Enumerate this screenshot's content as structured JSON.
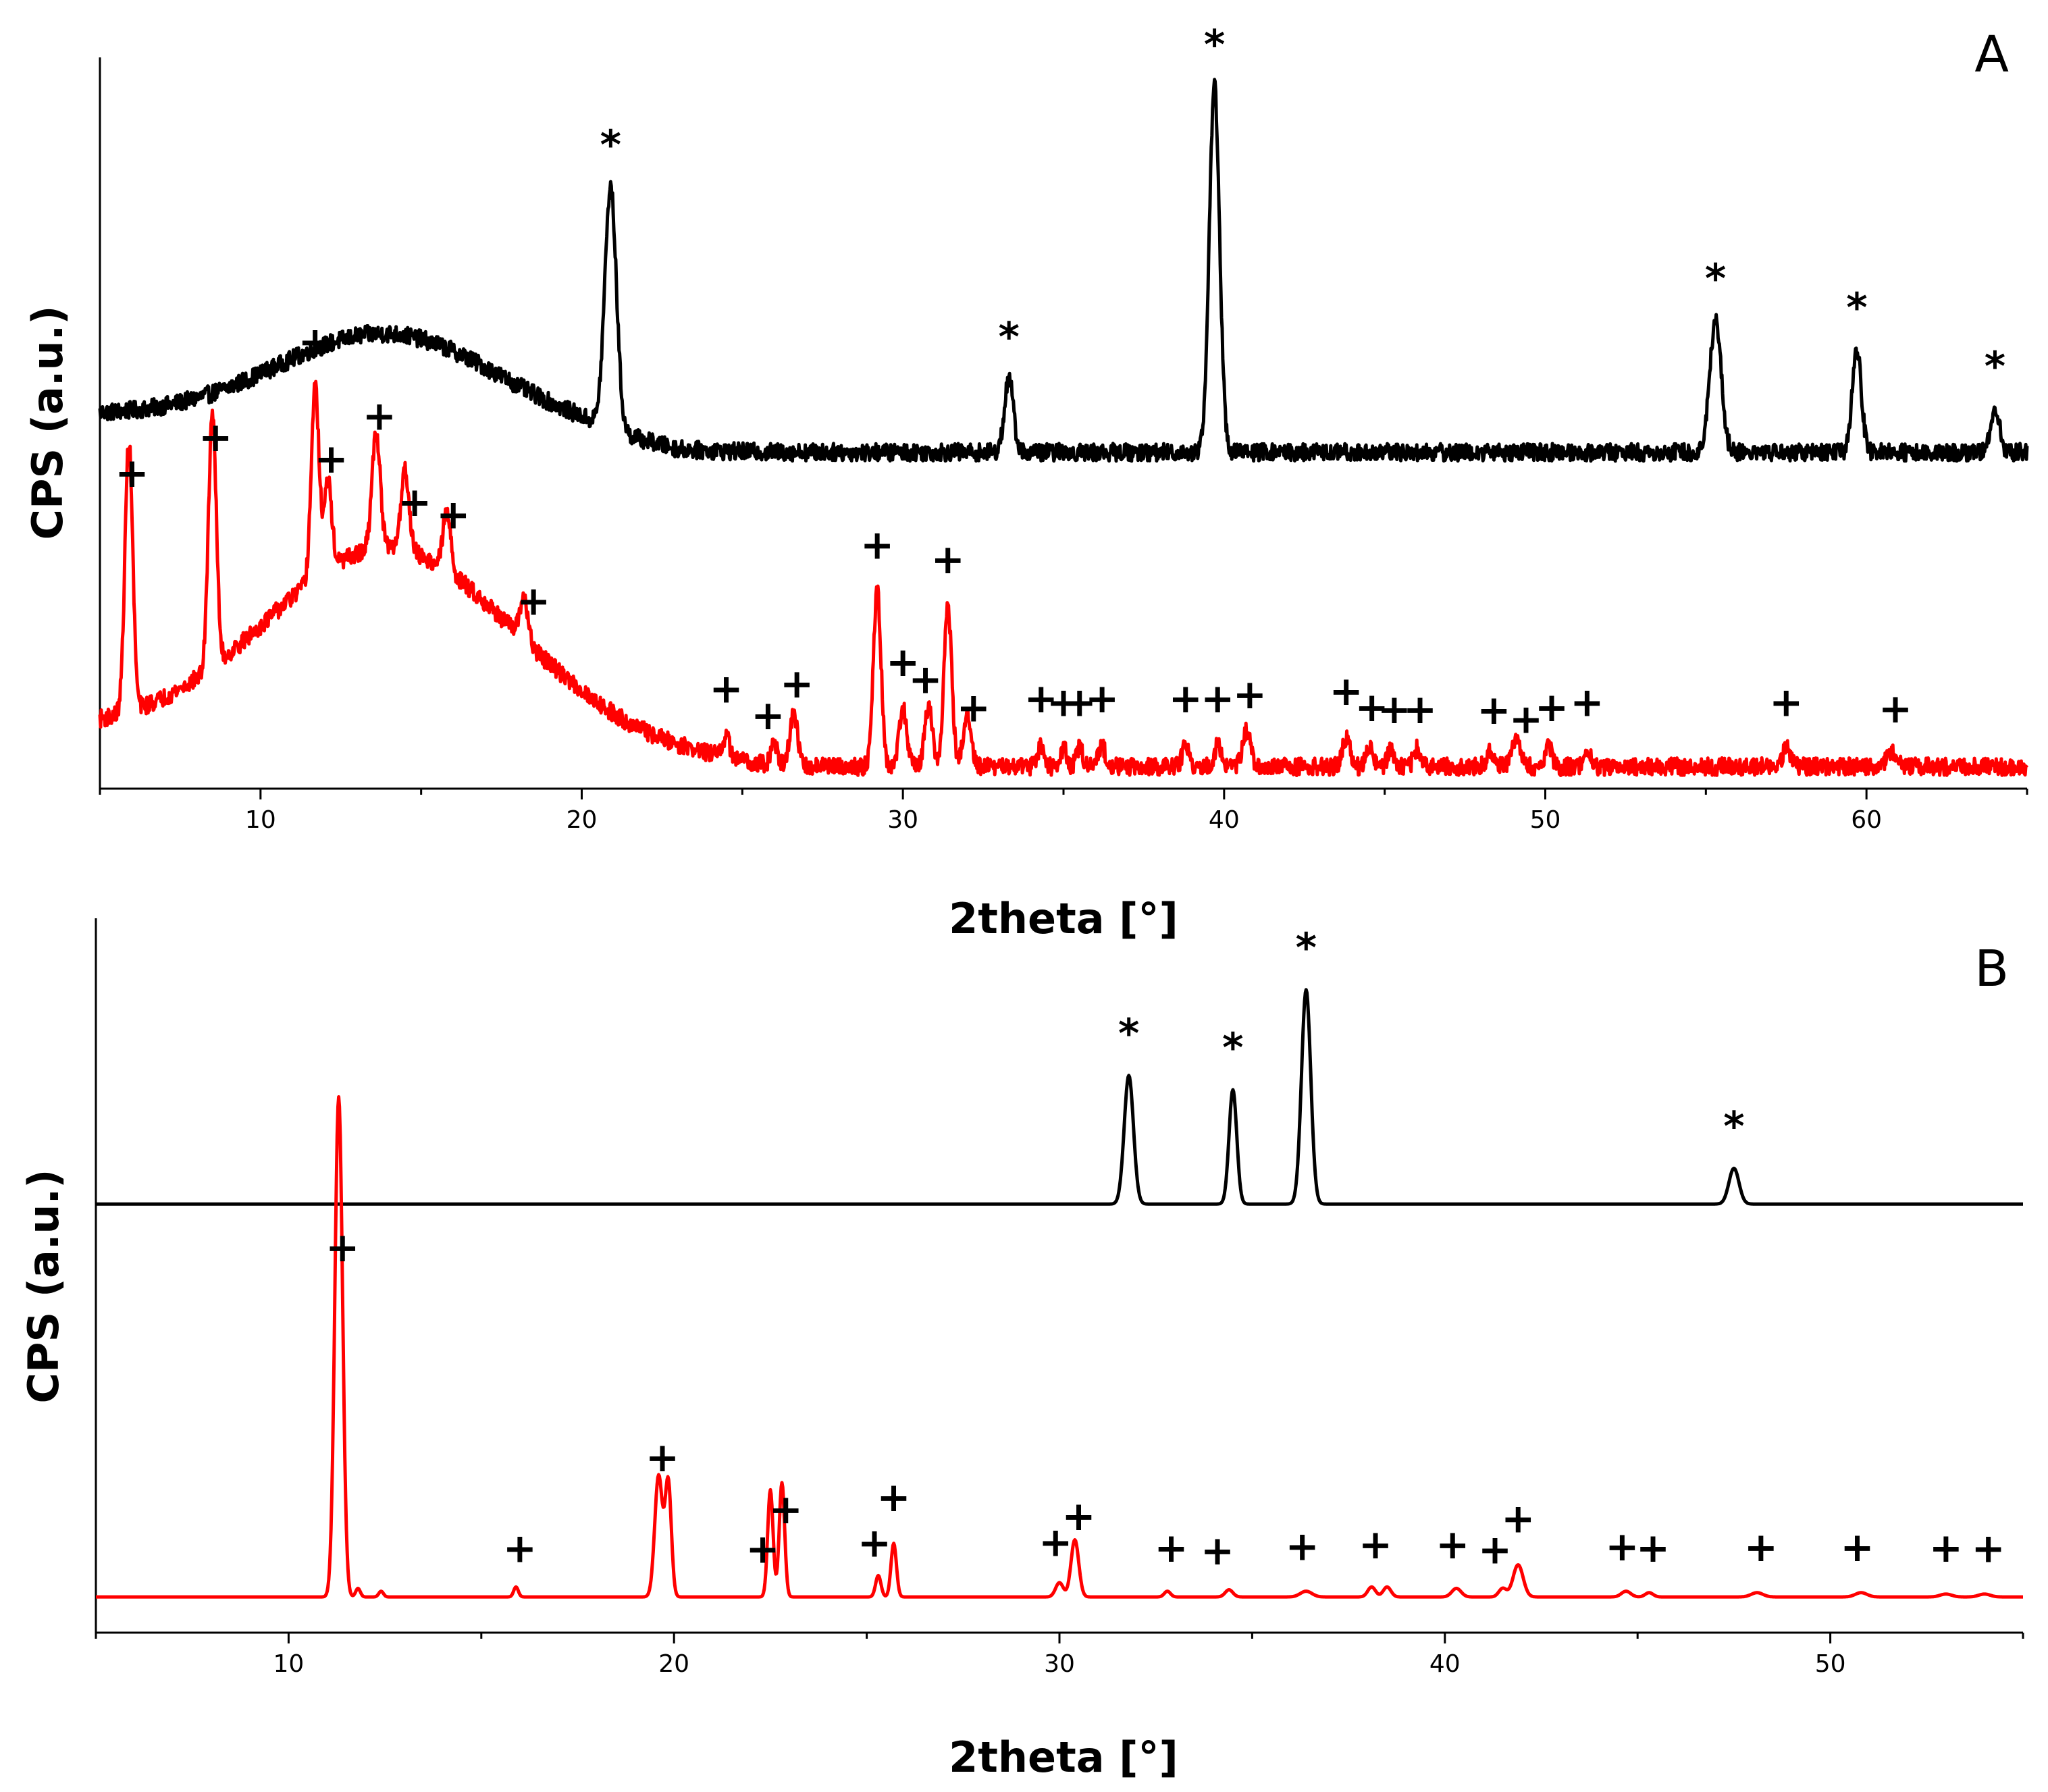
{
  "chart_data": [
    {
      "panel_label": "A",
      "type": "line",
      "xlabel": "2theta [°]",
      "ylabel": "CPS (a.u.)",
      "xlim": [
        5,
        65
      ],
      "ylim": [
        0,
        1
      ],
      "x_ticks": [
        10,
        20,
        30,
        40,
        50,
        60
      ],
      "y_ticks_labeled": false,
      "grid": false,
      "legend": "none",
      "series": [
        {
          "color": "#000000",
          "baseline": 0.46,
          "noise": 0.012,
          "humps": [
            [
              14,
              0.13,
              3.5
            ]
          ],
          "ramp": [
            [
              5,
              0.05
            ],
            [
              20,
              0.02
            ],
            [
              23,
              0.0
            ]
          ],
          "peaks": [
            [
              20.9,
              0.33,
              0.18
            ],
            [
              33.3,
              0.1,
              0.14
            ],
            [
              39.7,
              0.5,
              0.16
            ],
            [
              55.3,
              0.18,
              0.18
            ],
            [
              59.7,
              0.14,
              0.14
            ],
            [
              64.0,
              0.06,
              0.14
            ]
          ],
          "markers": {
            "symbol": "*",
            "x": [
              20.9,
              33.3,
              39.7,
              55.3,
              59.7,
              64.0
            ]
          }
        },
        {
          "color": "#ff0000",
          "baseline": 0.03,
          "noise": 0.012,
          "humps": [
            [
              14,
              0.26,
              3.8
            ]
          ],
          "ramp": [
            [
              5,
              0.05
            ],
            [
              20,
              0.03
            ],
            [
              26,
              0.0
            ]
          ],
          "peaks": [
            [
              5.9,
              0.37,
              0.12
            ],
            [
              8.5,
              0.35,
              0.12
            ],
            [
              11.7,
              0.26,
              0.12
            ],
            [
              12.1,
              0.12,
              0.12
            ],
            [
              13.6,
              0.16,
              0.13
            ],
            [
              14.5,
              0.11,
              0.13
            ],
            [
              15.8,
              0.08,
              0.12
            ],
            [
              18.2,
              0.06,
              0.12
            ],
            [
              24.5,
              0.03,
              0.1
            ],
            [
              26.0,
              0.03,
              0.1
            ],
            [
              26.6,
              0.07,
              0.12
            ],
            [
              29.2,
              0.24,
              0.12
            ],
            [
              30.0,
              0.08,
              0.12
            ],
            [
              30.8,
              0.08,
              0.12
            ],
            [
              31.4,
              0.22,
              0.12
            ],
            [
              32.0,
              0.07,
              0.12
            ],
            [
              34.3,
              0.03,
              0.1
            ],
            [
              35.0,
              0.025,
              0.1
            ],
            [
              35.5,
              0.025,
              0.1
            ],
            [
              36.2,
              0.03,
              0.1
            ],
            [
              38.8,
              0.03,
              0.1
            ],
            [
              39.8,
              0.03,
              0.1
            ],
            [
              40.7,
              0.05,
              0.12
            ],
            [
              43.8,
              0.04,
              0.12
            ],
            [
              44.5,
              0.03,
              0.1
            ],
            [
              45.2,
              0.025,
              0.1
            ],
            [
              46.0,
              0.025,
              0.1
            ],
            [
              48.3,
              0.02,
              0.12
            ],
            [
              49.1,
              0.04,
              0.12
            ],
            [
              50.1,
              0.03,
              0.1
            ],
            [
              51.3,
              0.025,
              0.1
            ],
            [
              57.5,
              0.025,
              0.12
            ],
            [
              60.8,
              0.02,
              0.15
            ]
          ],
          "markers": {
            "symbol": "+",
            "x": [
              6.0,
              8.6,
              11.7,
              12.2,
              13.7,
              14.8,
              16.0,
              18.5,
              24.5,
              25.8,
              26.7,
              29.2,
              30.0,
              30.7,
              31.4,
              32.2,
              34.3,
              35.0,
              35.5,
              36.2,
              38.8,
              39.8,
              40.8,
              43.8,
              44.6,
              45.3,
              46.1,
              48.4,
              49.4,
              50.2,
              51.3,
              57.5,
              60.9
            ]
          }
        }
      ]
    },
    {
      "panel_label": "B",
      "type": "line",
      "xlabel": "2theta [°]",
      "ylabel": "CPS (a.u.)",
      "xlim": [
        5,
        55
      ],
      "ylim": [
        0,
        1
      ],
      "x_ticks": [
        10,
        20,
        30,
        40,
        50
      ],
      "y_ticks_labeled": false,
      "grid": false,
      "legend": "none",
      "series": [
        {
          "color": "#000000",
          "baseline": 0.6,
          "noise": 0.0,
          "humps": [],
          "ramp": [],
          "peaks": [
            [
              31.8,
              0.18,
              0.12
            ],
            [
              34.5,
              0.16,
              0.1
            ],
            [
              36.4,
              0.3,
              0.12
            ],
            [
              47.5,
              0.05,
              0.13
            ]
          ],
          "markers": {
            "symbol": "*",
            "x": [
              31.8,
              34.5,
              36.4,
              47.5
            ]
          }
        },
        {
          "color": "#ff0000",
          "baseline": 0.05,
          "noise": 0.0,
          "humps": [],
          "ramp": [],
          "peaks": [
            [
              11.3,
              0.7,
              0.1
            ],
            [
              11.8,
              0.012,
              0.06
            ],
            [
              12.4,
              0.008,
              0.06
            ],
            [
              15.9,
              0.014,
              0.06
            ],
            [
              19.6,
              0.17,
              0.1
            ],
            [
              19.85,
              0.16,
              0.08
            ],
            [
              22.5,
              0.15,
              0.07
            ],
            [
              22.8,
              0.16,
              0.07
            ],
            [
              25.3,
              0.03,
              0.07
            ],
            [
              25.7,
              0.075,
              0.07
            ],
            [
              30.0,
              0.02,
              0.1
            ],
            [
              30.4,
              0.08,
              0.1
            ],
            [
              32.8,
              0.008,
              0.08
            ],
            [
              34.4,
              0.01,
              0.1
            ],
            [
              36.4,
              0.008,
              0.15
            ],
            [
              38.1,
              0.014,
              0.1
            ],
            [
              38.5,
              0.014,
              0.1
            ],
            [
              40.3,
              0.012,
              0.12
            ],
            [
              41.5,
              0.012,
              0.1
            ],
            [
              41.9,
              0.045,
              0.13
            ],
            [
              44.7,
              0.008,
              0.12
            ],
            [
              45.3,
              0.006,
              0.1
            ],
            [
              48.1,
              0.006,
              0.15
            ],
            [
              50.8,
              0.006,
              0.15
            ],
            [
              53.0,
              0.004,
              0.15
            ],
            [
              54.0,
              0.004,
              0.15
            ]
          ],
          "markers": {
            "symbol": "+",
            "x": [
              11.4,
              16.0,
              19.7,
              22.3,
              22.9,
              25.2,
              25.7,
              29.9,
              30.5,
              32.9,
              34.1,
              36.3,
              38.2,
              40.2,
              41.3,
              41.9,
              44.6,
              45.4,
              48.2,
              50.7,
              53.0,
              54.1
            ]
          }
        }
      ]
    }
  ]
}
